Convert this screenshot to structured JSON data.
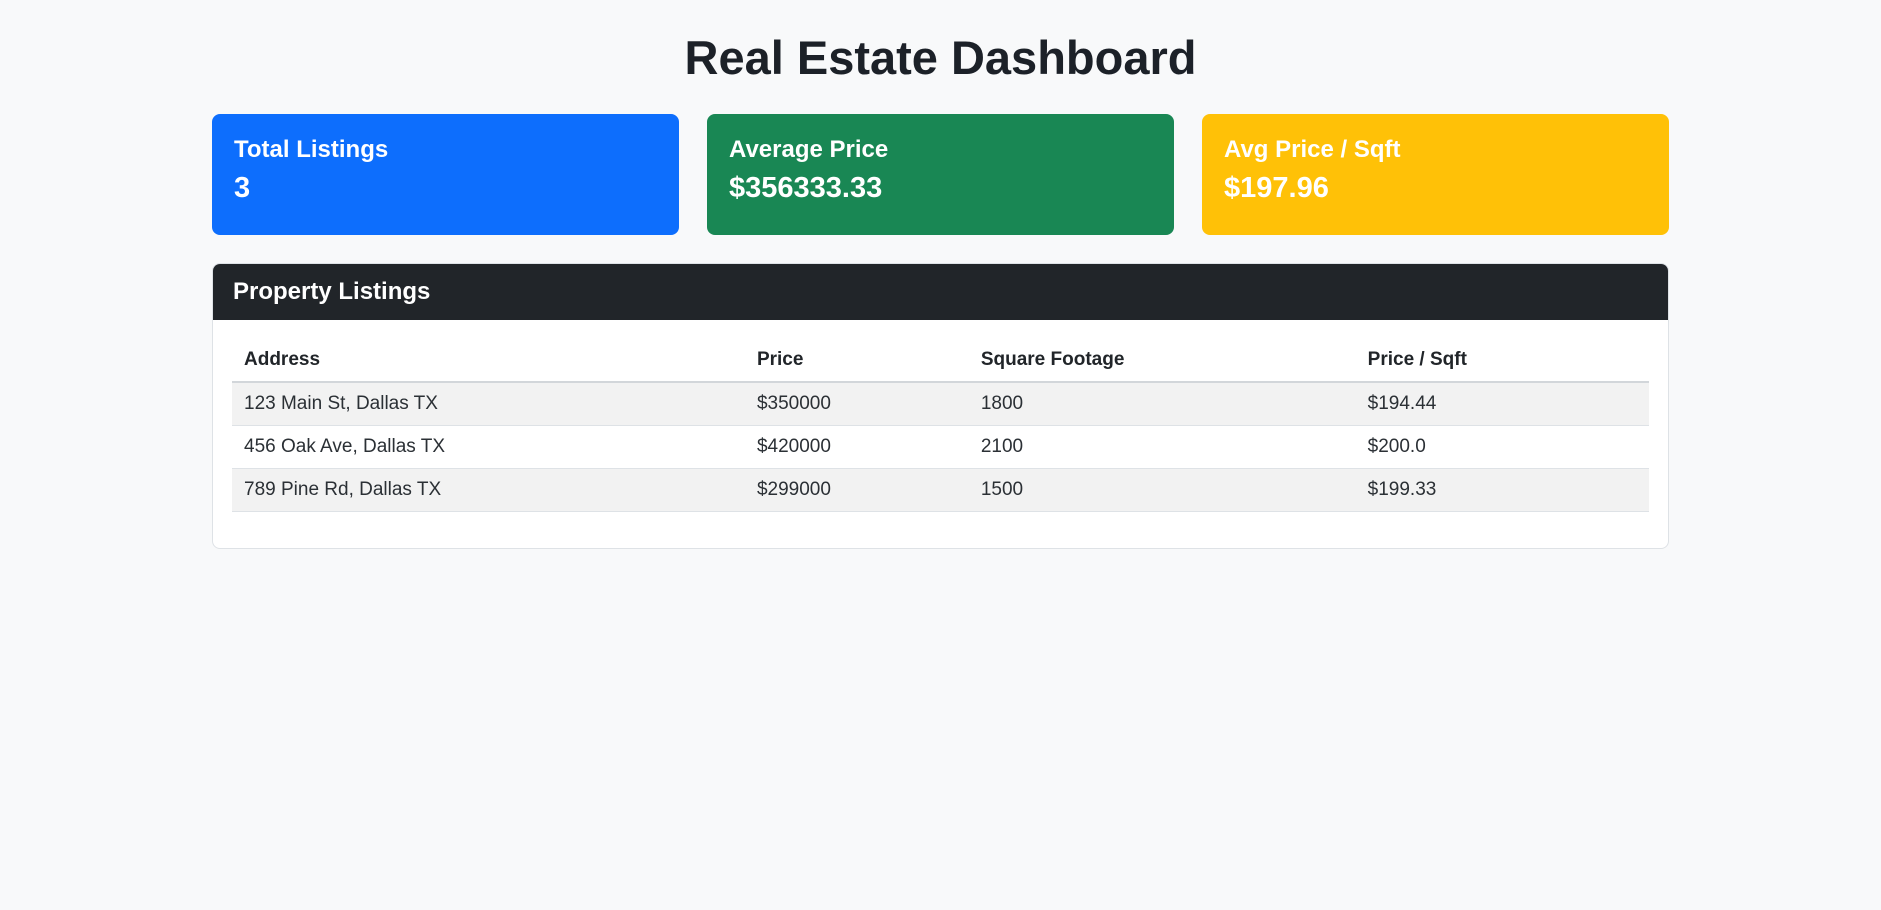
{
  "page": {
    "title": "Real Estate Dashboard",
    "background_color": "#f8f9fa"
  },
  "stats": [
    {
      "label": "Total Listings",
      "value": "3",
      "color": "#0d6efd"
    },
    {
      "label": "Average Price",
      "value": "$356333.33",
      "color": "#198754"
    },
    {
      "label": "Avg Price / Sqft",
      "value": "$197.96",
      "color": "#ffc107"
    }
  ],
  "listings": {
    "header": "Property Listings",
    "header_bg": "#212529",
    "columns": [
      "Address",
      "Price",
      "Square Footage",
      "Price / Sqft"
    ],
    "rows": [
      [
        "123 Main St, Dallas TX",
        "$350000",
        "1800",
        "$194.44"
      ],
      [
        "456 Oak Ave, Dallas TX",
        "$420000",
        "2100",
        "$200.0"
      ],
      [
        "789 Pine Rd, Dallas TX",
        "$299000",
        "1500",
        "$199.33"
      ]
    ]
  }
}
